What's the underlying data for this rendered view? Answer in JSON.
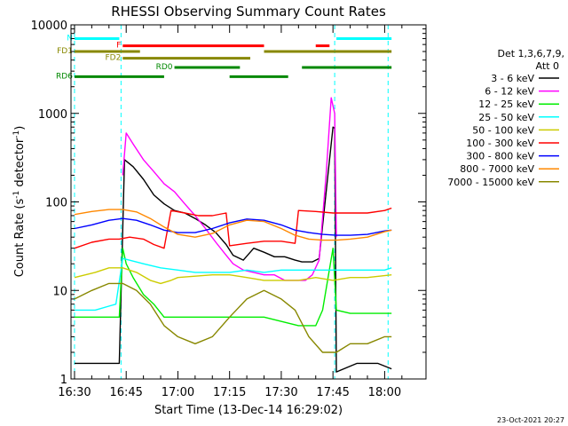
{
  "chart_data": {
    "type": "line",
    "title": "RHESSI Observing Summary Count Rates",
    "xlabel": "Start Time (13-Dec-14 16:29:02)",
    "ylabel": "Count Rate (s⁻¹ detector⁻¹)",
    "ylabel_main": "Count Rate (s",
    "ylabel_sup1": "-1",
    "ylabel_mid": " detector",
    "ylabel_sup2": "-1",
    "ylabel_end": ")",
    "x_range_min": [
      16.483,
      18.2
    ],
    "x_ticks": [
      "16:30",
      "16:45",
      "17:00",
      "17:15",
      "17:30",
      "17:45",
      "18:00"
    ],
    "x_tick_values_min": [
      990,
      1005,
      1020,
      1035,
      1050,
      1065,
      1080
    ],
    "y_scale": "log",
    "ylim": [
      1,
      10000
    ],
    "y_ticks": [
      "1",
      "10",
      "100",
      "1000",
      "10000"
    ],
    "legend_header": [
      "Det 1,3,6,7,9,",
      "Att 0"
    ],
    "legend_position": "right",
    "timestamp": "23-Oct-2021 20:27",
    "series": [
      {
        "name": "3 - 6 keV",
        "color": "#000000",
        "points": [
          [
            990,
            1.5
          ],
          [
            1000,
            1.5
          ],
          [
            1003,
            1.5
          ],
          [
            1004.5,
            300
          ],
          [
            1007,
            250
          ],
          [
            1010,
            180
          ],
          [
            1013,
            120
          ],
          [
            1016,
            95
          ],
          [
            1019,
            80
          ],
          [
            1022,
            75
          ],
          [
            1025,
            65
          ],
          [
            1028,
            55
          ],
          [
            1031,
            45
          ],
          [
            1034,
            33
          ],
          [
            1036,
            25
          ],
          [
            1039,
            22
          ],
          [
            1042,
            30
          ],
          [
            1045,
            27
          ],
          [
            1048,
            24
          ],
          [
            1051,
            24
          ],
          [
            1054,
            22
          ],
          [
            1056,
            21
          ],
          [
            1059,
            21
          ],
          [
            1061,
            23
          ],
          [
            1064,
            300
          ],
          [
            1065,
            700
          ],
          [
            1065.5,
            680
          ],
          [
            1066,
            1.2
          ],
          [
            1072,
            1.5
          ],
          [
            1078,
            1.5
          ],
          [
            1082,
            1.3
          ]
        ]
      },
      {
        "name": "6 - 12 keV",
        "color": "#ff00ff",
        "points": [
          [
            1004,
            200
          ],
          [
            1005,
            600
          ],
          [
            1007,
            450
          ],
          [
            1010,
            300
          ],
          [
            1013,
            220
          ],
          [
            1016,
            160
          ],
          [
            1019,
            130
          ],
          [
            1022,
            95
          ],
          [
            1025,
            70
          ],
          [
            1028,
            50
          ],
          [
            1031,
            35
          ],
          [
            1034,
            25
          ],
          [
            1036,
            20
          ],
          [
            1039,
            17
          ],
          [
            1042,
            16
          ],
          [
            1045,
            15
          ],
          [
            1048,
            15
          ],
          [
            1051,
            13
          ],
          [
            1054,
            13
          ],
          [
            1057,
            13
          ],
          [
            1059,
            15
          ],
          [
            1061,
            22
          ],
          [
            1063,
            200
          ],
          [
            1064.5,
            1500
          ],
          [
            1065.5,
            1000
          ],
          [
            1066,
            40
          ]
        ]
      },
      {
        "name": "12 - 25 keV",
        "color": "#00ee00",
        "points": [
          [
            990,
            5
          ],
          [
            995,
            5
          ],
          [
            1000,
            5
          ],
          [
            1003,
            5
          ],
          [
            1004,
            30
          ],
          [
            1005,
            20
          ],
          [
            1007,
            14
          ],
          [
            1010,
            9
          ],
          [
            1013,
            7
          ],
          [
            1016,
            5
          ],
          [
            1019,
            5
          ],
          [
            1025,
            5
          ],
          [
            1035,
            5
          ],
          [
            1045,
            5
          ],
          [
            1055,
            4
          ],
          [
            1060,
            4
          ],
          [
            1062,
            6
          ],
          [
            1065,
            30
          ],
          [
            1066,
            6
          ],
          [
            1070,
            5.5
          ],
          [
            1075,
            5.5
          ],
          [
            1082,
            5.5
          ]
        ]
      },
      {
        "name": "25 - 50 keV",
        "color": "#00ffff",
        "points": [
          [
            990,
            6
          ],
          [
            996,
            6
          ],
          [
            1002,
            7
          ],
          [
            1004,
            23
          ],
          [
            1010,
            20
          ],
          [
            1015,
            18
          ],
          [
            1020,
            17
          ],
          [
            1025,
            16
          ],
          [
            1030,
            16
          ],
          [
            1035,
            16
          ],
          [
            1040,
            17
          ],
          [
            1045,
            16
          ],
          [
            1050,
            17
          ],
          [
            1055,
            17
          ],
          [
            1060,
            17
          ],
          [
            1065,
            17
          ],
          [
            1070,
            17
          ],
          [
            1075,
            17
          ],
          [
            1080,
            17
          ],
          [
            1082,
            18
          ]
        ]
      },
      {
        "name": "50 - 100 keV",
        "color": "#cccc00",
        "points": [
          [
            990,
            14
          ],
          [
            996,
            16
          ],
          [
            1000,
            18
          ],
          [
            1004,
            18
          ],
          [
            1008,
            16
          ],
          [
            1012,
            13
          ],
          [
            1015,
            12
          ],
          [
            1018,
            13
          ],
          [
            1020,
            14
          ],
          [
            1030,
            15
          ],
          [
            1035,
            15
          ],
          [
            1040,
            14
          ],
          [
            1045,
            13
          ],
          [
            1050,
            13
          ],
          [
            1055,
            13
          ],
          [
            1060,
            14
          ],
          [
            1065,
            13
          ],
          [
            1070,
            14
          ],
          [
            1075,
            14
          ],
          [
            1082,
            15
          ]
        ]
      },
      {
        "name": "100 - 300 keV",
        "color": "#ff0000",
        "points": [
          [
            990,
            30
          ],
          [
            995,
            35
          ],
          [
            1000,
            38
          ],
          [
            1003,
            38
          ],
          [
            1006,
            40
          ],
          [
            1010,
            38
          ],
          [
            1013,
            33
          ],
          [
            1016,
            30
          ],
          [
            1018,
            80
          ],
          [
            1022,
            75
          ],
          [
            1026,
            70
          ],
          [
            1030,
            70
          ],
          [
            1034,
            75
          ],
          [
            1035,
            32
          ],
          [
            1040,
            34
          ],
          [
            1045,
            36
          ],
          [
            1050,
            36
          ],
          [
            1054,
            34
          ],
          [
            1055,
            80
          ],
          [
            1060,
            78
          ],
          [
            1065,
            75
          ],
          [
            1070,
            75
          ],
          [
            1075,
            75
          ],
          [
            1080,
            80
          ],
          [
            1082,
            85
          ]
        ]
      },
      {
        "name": "300 - 800 keV",
        "color": "#0000ff",
        "points": [
          [
            990,
            50
          ],
          [
            995,
            55
          ],
          [
            1000,
            62
          ],
          [
            1004,
            65
          ],
          [
            1008,
            62
          ],
          [
            1012,
            55
          ],
          [
            1016,
            48
          ],
          [
            1020,
            45
          ],
          [
            1025,
            45
          ],
          [
            1030,
            50
          ],
          [
            1035,
            58
          ],
          [
            1040,
            64
          ],
          [
            1045,
            62
          ],
          [
            1050,
            55
          ],
          [
            1054,
            48
          ],
          [
            1058,
            45
          ],
          [
            1062,
            43
          ],
          [
            1066,
            42
          ],
          [
            1070,
            42
          ],
          [
            1075,
            43
          ],
          [
            1080,
            47
          ],
          [
            1082,
            48
          ]
        ]
      },
      {
        "name": "800 - 7000 keV",
        "color": "#ff8800",
        "points": [
          [
            990,
            72
          ],
          [
            995,
            78
          ],
          [
            1000,
            82
          ],
          [
            1004,
            82
          ],
          [
            1008,
            77
          ],
          [
            1012,
            65
          ],
          [
            1016,
            52
          ],
          [
            1020,
            43
          ],
          [
            1025,
            40
          ],
          [
            1030,
            44
          ],
          [
            1035,
            55
          ],
          [
            1040,
            62
          ],
          [
            1045,
            60
          ],
          [
            1050,
            50
          ],
          [
            1054,
            42
          ],
          [
            1058,
            38
          ],
          [
            1062,
            37
          ],
          [
            1066,
            37
          ],
          [
            1070,
            38
          ],
          [
            1075,
            40
          ],
          [
            1080,
            46
          ],
          [
            1082,
            48
          ]
        ]
      },
      {
        "name": "7000 - 15000 keV",
        "color": "#888800",
        "points": [
          [
            990,
            8
          ],
          [
            995,
            10
          ],
          [
            1000,
            12
          ],
          [
            1004,
            12
          ],
          [
            1008,
            10
          ],
          [
            1012,
            7
          ],
          [
            1016,
            4
          ],
          [
            1020,
            3
          ],
          [
            1025,
            2.5
          ],
          [
            1030,
            3
          ],
          [
            1035,
            5
          ],
          [
            1040,
            8
          ],
          [
            1045,
            10
          ],
          [
            1050,
            8
          ],
          [
            1054,
            6
          ],
          [
            1058,
            3
          ],
          [
            1062,
            2
          ],
          [
            1066,
            2
          ],
          [
            1070,
            2.5
          ],
          [
            1075,
            2.5
          ],
          [
            1080,
            3
          ],
          [
            1082,
            3
          ]
        ]
      }
    ],
    "flag_bars": [
      {
        "label": "N",
        "color": "#00ffff",
        "level": 7000,
        "segments": [
          [
            990,
            1003
          ],
          [
            1066,
            1082
          ]
        ]
      },
      {
        "label": "F",
        "color": "#ff0000",
        "level": 5800,
        "segments": [
          [
            1004,
            1045
          ],
          [
            1060,
            1064
          ]
        ]
      },
      {
        "label": "FD1",
        "color": "#888800",
        "level": 5000,
        "segments": [
          [
            990,
            1009
          ],
          [
            1045,
            1082
          ]
        ]
      },
      {
        "label": "FD2",
        "color": "#888800",
        "level": 4200,
        "segments": [
          [
            1004,
            1041
          ]
        ]
      },
      {
        "label": "RD0",
        "color": "#008800",
        "level": 3300,
        "segments": [
          [
            1019,
            1038
          ],
          [
            1056,
            1082
          ]
        ]
      },
      {
        "label": "RD6",
        "color": "#008800",
        "level": 2600,
        "segments": [
          [
            990,
            1016
          ],
          [
            1035,
            1052
          ]
        ]
      }
    ],
    "vertical_markers_min": [
      [
        990,
        "#00ffff"
      ],
      [
        1003.5,
        "#00ffff"
      ],
      [
        1065.5,
        "#00ffff"
      ],
      [
        1081,
        "#00ffff"
      ]
    ]
  }
}
